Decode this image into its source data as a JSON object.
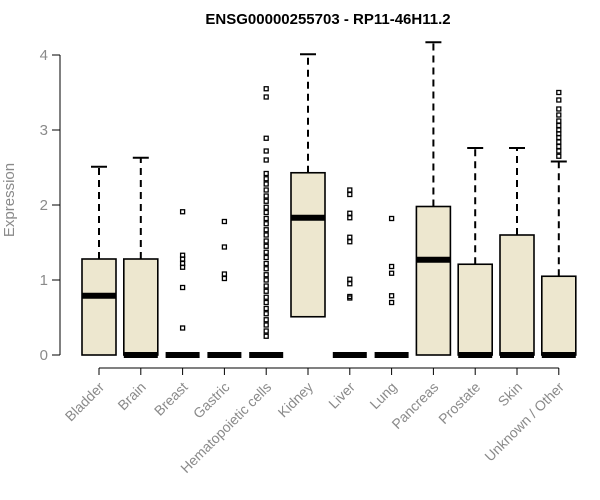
{
  "chart_data": {
    "type": "boxplot",
    "title": "ENSG00000255703 - RP11-46H11.2",
    "xlabel": "",
    "ylabel": "Expression",
    "ylim": [
      0,
      4.2
    ],
    "yticks": [
      0,
      1,
      2,
      3,
      4
    ],
    "grid": false,
    "box_fill": "#ede7cf",
    "categories": [
      "Bladder",
      "Brain",
      "Breast",
      "Gastric",
      "Hematopoietic cells",
      "Kidney",
      "Liver",
      "Lung",
      "Pancreas",
      "Prostate",
      "Skin",
      "Unknown / Other"
    ],
    "boxes": [
      {
        "min": 0,
        "q1": 0,
        "median": 0.79,
        "q3": 1.28,
        "max": 2.51,
        "outliers": []
      },
      {
        "min": 0,
        "q1": 0,
        "median": 0,
        "q3": 1.28,
        "max": 2.63,
        "outliers": []
      },
      {
        "min": 0,
        "q1": 0,
        "median": 0,
        "q3": 0,
        "max": 0,
        "outliers": [
          1.91,
          1.33,
          1.28,
          1.22,
          1.17,
          0.9,
          0.36
        ]
      },
      {
        "min": 0,
        "q1": 0,
        "median": 0,
        "q3": 0,
        "max": 0,
        "outliers": [
          1.78,
          1.44,
          1.08,
          1.02
        ]
      },
      {
        "min": 0,
        "q1": 0,
        "median": 0,
        "q3": 0,
        "max": 0,
        "outliers": [
          3.55,
          3.44,
          2.89,
          2.72,
          2.6,
          2.42,
          2.35,
          2.28,
          2.2,
          2.12,
          2.05,
          1.97,
          1.9,
          1.82,
          1.75,
          1.67,
          1.6,
          1.52,
          1.45,
          1.37,
          1.3,
          1.22,
          1.15,
          1.07,
          1.0,
          0.92,
          0.85,
          0.77,
          0.7,
          0.62,
          0.55,
          0.47,
          0.4,
          0.32,
          0.25
        ]
      },
      {
        "min": 0,
        "q1": 0.51,
        "median": 1.83,
        "q3": 2.43,
        "max": 4.01,
        "outliers": []
      },
      {
        "min": 0,
        "q1": 0,
        "median": 0,
        "q3": 0,
        "max": 0,
        "outliers": [
          2.2,
          2.14,
          1.89,
          1.83,
          1.57,
          1.51,
          1.01,
          0.95,
          0.78,
          0.76
        ]
      },
      {
        "min": 0,
        "q1": 0,
        "median": 0,
        "q3": 0,
        "max": 0,
        "outliers": [
          1.82,
          1.18,
          1.09,
          0.79,
          0.7
        ]
      },
      {
        "min": 0,
        "q1": 0,
        "median": 1.27,
        "q3": 1.98,
        "max": 4.17,
        "outliers": []
      },
      {
        "min": 0,
        "q1": 0,
        "median": 0,
        "q3": 1.21,
        "max": 2.76,
        "outliers": []
      },
      {
        "min": 0,
        "q1": 0,
        "median": 0,
        "q3": 1.6,
        "max": 2.76,
        "outliers": []
      },
      {
        "min": 0,
        "q1": 0,
        "median": 0,
        "q3": 1.05,
        "max": 2.58,
        "outliers": [
          3.5,
          3.4,
          3.28,
          3.2,
          3.12,
          3.06,
          3.0,
          2.95,
          2.9,
          2.84,
          2.78,
          2.72,
          2.65
        ]
      }
    ]
  }
}
